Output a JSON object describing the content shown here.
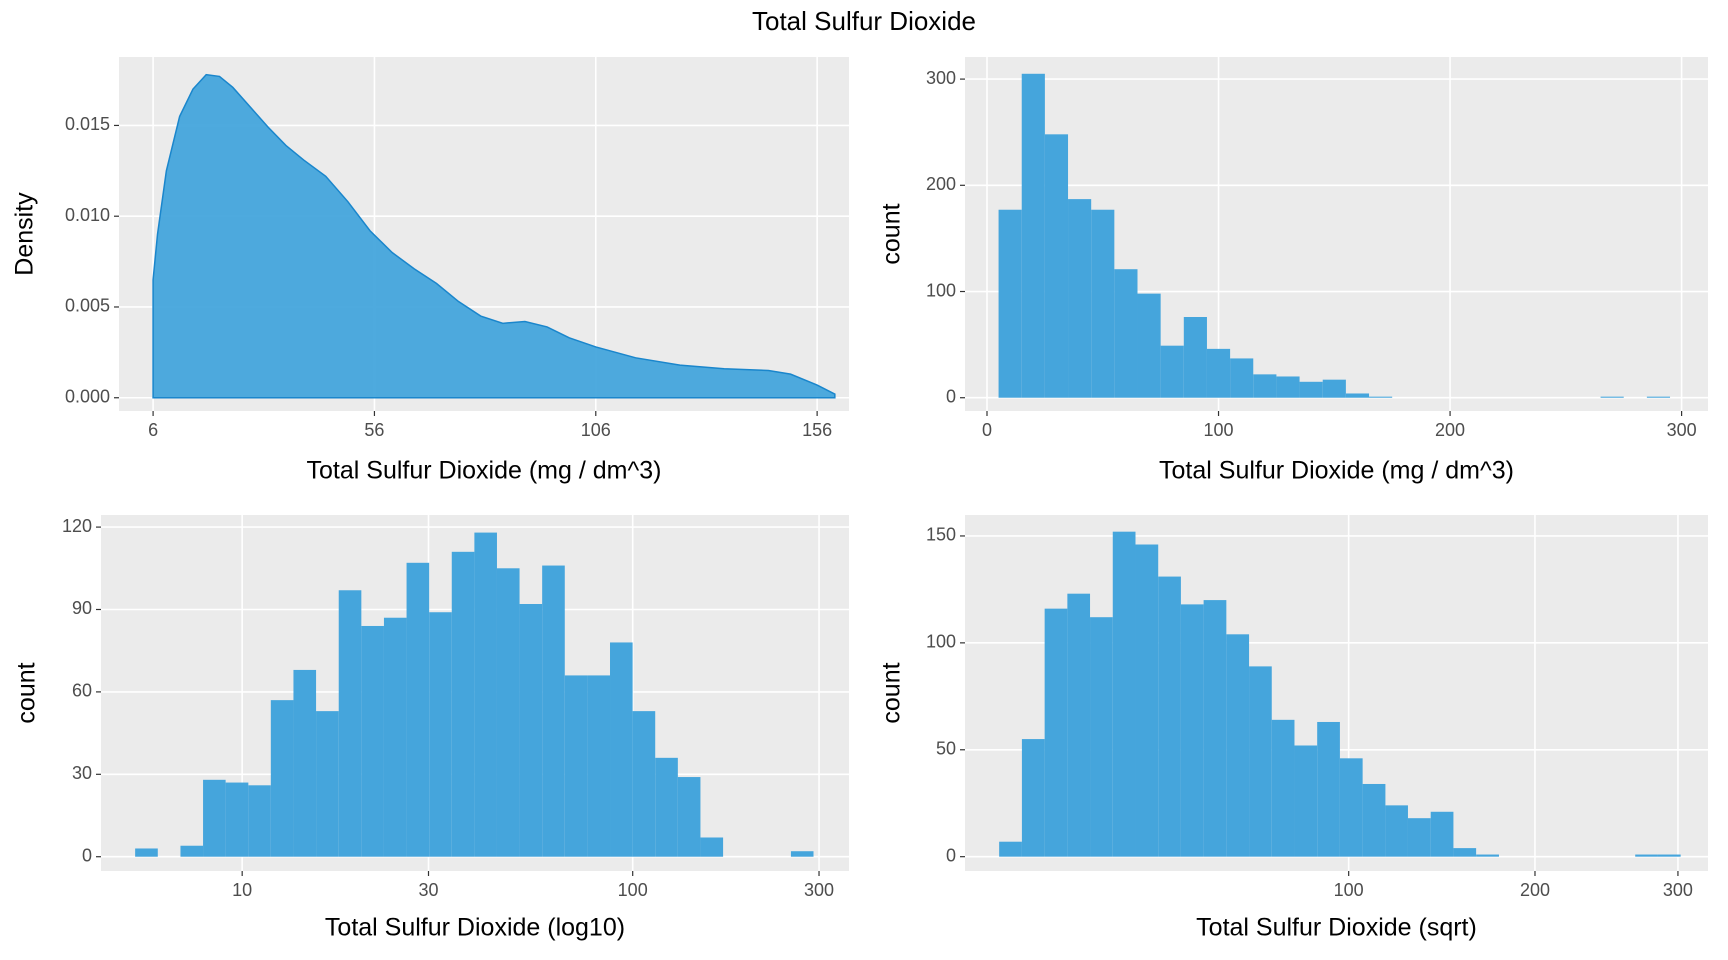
{
  "title": "Total Sulfur Dioxide",
  "chart_data": [
    {
      "type": "area",
      "x_label": "Total Sulfur Dioxide (mg / dm^3)",
      "y_label": "Density",
      "color": "#45a5dc",
      "grid": true,
      "x": [
        6,
        7,
        9,
        12,
        15,
        18,
        21,
        24,
        28,
        32,
        36,
        40,
        45,
        50,
        55,
        60,
        65,
        70,
        75,
        80,
        85,
        90,
        95,
        100,
        106,
        115,
        125,
        135,
        145,
        150,
        156,
        160
      ],
      "values": [
        0.0065,
        0.009,
        0.0125,
        0.0155,
        0.017,
        0.0178,
        0.0177,
        0.0171,
        0.016,
        0.0149,
        0.0139,
        0.0131,
        0.0122,
        0.0108,
        0.0092,
        0.008,
        0.0071,
        0.0063,
        0.0053,
        0.0045,
        0.0041,
        0.0042,
        0.0039,
        0.0033,
        0.0028,
        0.0022,
        0.0018,
        0.0016,
        0.0015,
        0.0013,
        0.0007,
        0.0002
      ],
      "xlim": [
        -1.7,
        163.2
      ],
      "ylim": [
        -0.00073,
        0.01877
      ],
      "xticks": [
        6,
        56,
        106,
        156
      ],
      "yticks": [
        {
          "value": 0,
          "label": "0.000"
        },
        {
          "value": 0.005,
          "label": "0.005"
        },
        {
          "value": 0.01,
          "label": "0.010"
        },
        {
          "value": 0.015,
          "label": "0.015"
        }
      ]
    },
    {
      "type": "histogram",
      "x_label": "Total Sulfur Dioxide (mg / dm^3)",
      "y_label": "count",
      "color": "#45a5dc",
      "grid": true,
      "x_scale": "linear",
      "bins": [
        5,
        15,
        25,
        35,
        45,
        55,
        65,
        75,
        85,
        95,
        105,
        115,
        125,
        135,
        145,
        155,
        165,
        175,
        185,
        195,
        205,
        215,
        225,
        235,
        245,
        255,
        265,
        275,
        285,
        295,
        305
      ],
      "values": [
        177,
        305,
        248,
        187,
        177,
        121,
        98,
        49,
        76,
        46,
        37,
        22,
        20,
        15,
        17,
        4,
        1,
        0,
        0,
        0,
        0,
        0,
        0,
        0,
        0,
        0,
        1,
        0,
        1,
        0
      ],
      "xlim": [
        -9.5,
        311.4
      ],
      "ylim": [
        -12.5,
        320.8
      ],
      "xticks": [
        0,
        100,
        200,
        300
      ],
      "yticks": [
        0,
        100,
        200,
        300
      ]
    },
    {
      "type": "histogram",
      "x_label": "Total Sulfur Dioxide (log10)",
      "y_label": "count",
      "color": "#45a5dc",
      "grid": true,
      "x_scale": "log10",
      "bins": [
        5.32,
        6.08,
        6.95,
        7.94,
        9.07,
        10.37,
        11.84,
        13.53,
        15.46,
        17.67,
        20.19,
        23.07,
        26.36,
        30.12,
        34.41,
        39.32,
        44.92,
        51.32,
        58.64,
        67.0,
        76.56,
        87.48,
        99.95,
        114.2,
        130.5,
        149.1,
        170.4,
        194.7,
        222.4,
        254.2,
        290.4
      ],
      "values": [
        3,
        0,
        4,
        28,
        27,
        26,
        57,
        68,
        53,
        97,
        84,
        87,
        107,
        89,
        111,
        118,
        105,
        92,
        106,
        66,
        66,
        78,
        53,
        36,
        29,
        7,
        0,
        0,
        0,
        2
      ],
      "xlim": [
        4.35,
        358
      ],
      "ylim": [
        -5.2,
        124.4
      ],
      "xticks": [
        10,
        30,
        100,
        300
      ],
      "yticks": [
        0,
        30,
        60,
        90,
        120
      ]
    },
    {
      "type": "histogram",
      "x_label": "Total Sulfur Dioxide (sqrt)",
      "y_label": "count",
      "color": "#45a5dc",
      "grid": true,
      "x_scale": "sqrt",
      "bins": [
        4.97,
        7.48,
        10.5,
        14.03,
        18.06,
        22.61,
        27.67,
        33.24,
        39.31,
        45.9,
        53.0,
        60.61,
        68.72,
        77.35,
        86.49,
        96.14,
        106.3,
        117.0,
        128.1,
        139.8,
        152.0,
        164.7,
        178.0,
        191.7,
        205.9,
        220.7,
        235.9,
        251.7,
        268.0,
        284.8,
        302.1
      ],
      "values": [
        7,
        55,
        116,
        123,
        112,
        152,
        146,
        131,
        118,
        120,
        104,
        89,
        64,
        52,
        63,
        46,
        34,
        24,
        18,
        21,
        4,
        1,
        0,
        0,
        0,
        0,
        0,
        0,
        1,
        1
      ],
      "xlim": [
        2.16,
        323.6
      ],
      "ylim": [
        -6.7,
        159.8
      ],
      "xticks": [
        100,
        200,
        300
      ],
      "yticks": [
        0,
        50,
        100,
        150
      ]
    }
  ]
}
